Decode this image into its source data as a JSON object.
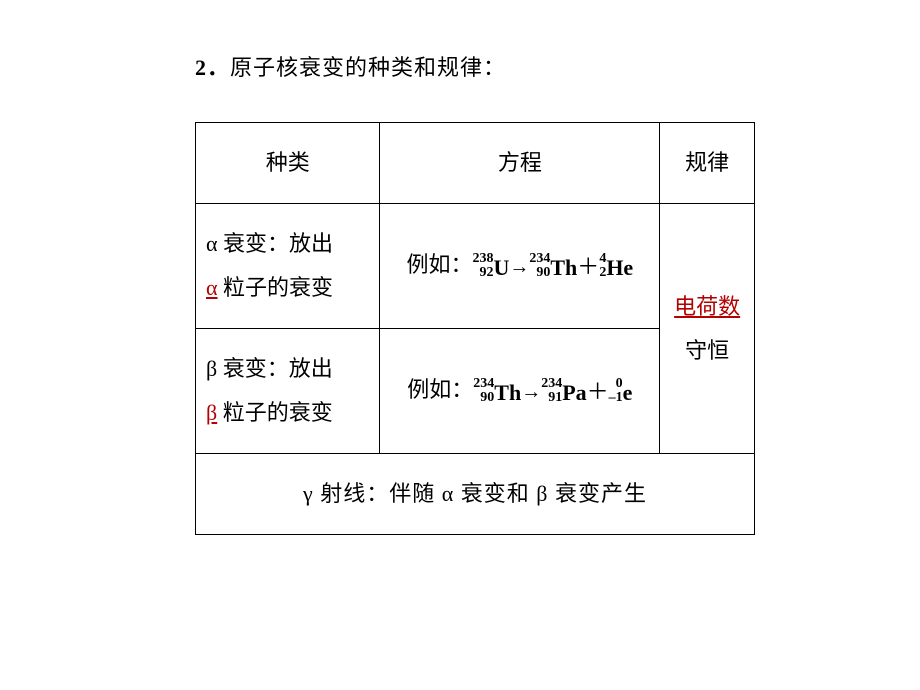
{
  "title": {
    "number": "2．",
    "text": "原子核衰变的种类和规律："
  },
  "headers": {
    "type": "种类",
    "equation": "方程",
    "rule": "规律"
  },
  "rows": {
    "alpha": {
      "line1_pre": "α 衰变：放出",
      "particle": "α",
      "line2_post": "粒子的衰变",
      "eq_label": "例如：",
      "reactant": {
        "mass": "238",
        "charge": "92",
        "sym": "U"
      },
      "product1": {
        "mass": "234",
        "charge": "90",
        "sym": "Th"
      },
      "product2": {
        "mass": "4",
        "charge": "2",
        "sym": "He"
      }
    },
    "beta": {
      "line1_pre": "β 衰变：放出",
      "particle": "β",
      "line2_post": "粒子的衰变",
      "eq_label": "例如：",
      "reactant": {
        "mass": "234",
        "charge": "90",
        "sym": "Th"
      },
      "product1": {
        "mass": "234",
        "charge": "91",
        "sym": "Pa"
      },
      "product2": {
        "mass": "0",
        "charge": "–1",
        "sym": "e"
      }
    },
    "rule": {
      "highlight": "电荷数",
      "rest": "守恒"
    },
    "gamma": {
      "text": "γ 射线：伴随 α 衰变和 β 衰变产生"
    }
  },
  "colors": {
    "highlight": "#b30000",
    "text": "#000000",
    "border": "#000000",
    "background": "#ffffff"
  },
  "fonts": {
    "body": "SimSun",
    "math": "Times New Roman",
    "title_size": 22,
    "cell_size": 22,
    "superscript_size": 14
  }
}
